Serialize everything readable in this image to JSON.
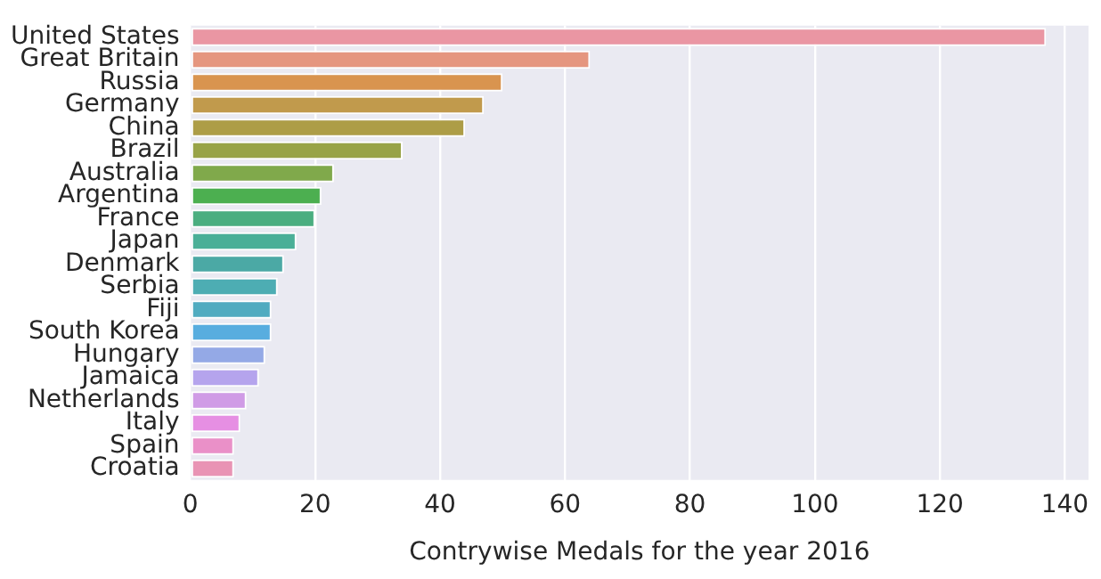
{
  "chart_data": {
    "type": "bar",
    "orientation": "horizontal",
    "xlabel": "Contrywise Medals for the year 2016",
    "categories": [
      "United States",
      "Great Britain",
      "Russia",
      "Germany",
      "China",
      "Brazil",
      "Australia",
      "Argentina",
      "France",
      "Japan",
      "Denmark",
      "Serbia",
      "Fiji",
      "South Korea",
      "Hungary",
      "Jamaica",
      "Netherlands",
      "Italy",
      "Spain",
      "Croatia"
    ],
    "values": [
      137,
      64,
      50,
      47,
      44,
      34,
      23,
      21,
      20,
      17,
      15,
      14,
      13,
      13,
      12,
      11,
      9,
      8,
      7,
      7
    ],
    "colors": [
      "#ea96a3",
      "#e5967f",
      "#d9944f",
      "#c19a4c",
      "#ad9d47",
      "#98a347",
      "#80a94b",
      "#4caf50",
      "#4bae80",
      "#4aaf97",
      "#4ba9a5",
      "#4dadb3",
      "#50abc0",
      "#58addf",
      "#94a9e6",
      "#b5a4ed",
      "#d09be6",
      "#e68fe3",
      "#ea90c8",
      "#e993b4"
    ],
    "xlim": [
      0,
      143.8
    ],
    "xticks": [
      0,
      20,
      40,
      60,
      80,
      100,
      120,
      140
    ],
    "grid": "x",
    "legend": false
  }
}
